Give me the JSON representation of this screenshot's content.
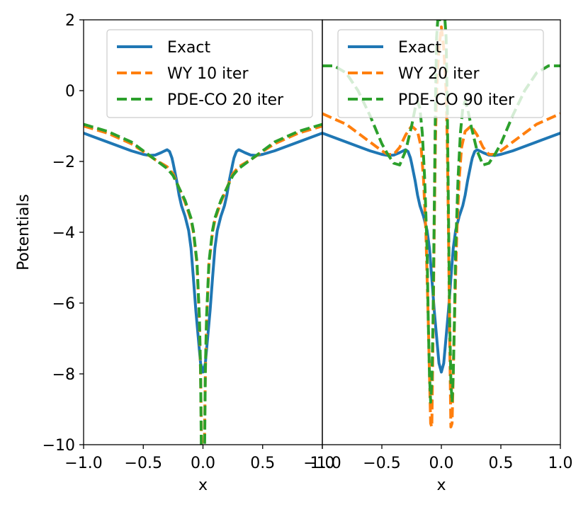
{
  "chart_data": {
    "type": "line",
    "ylabel": "Potentials",
    "ylim": [
      -10,
      2
    ],
    "yticks": [
      2,
      0,
      -2,
      -4,
      -6,
      -8,
      -10
    ],
    "ytick_labels": [
      "2",
      "0",
      "−2",
      "−4",
      "−6",
      "−8",
      "−10"
    ],
    "panels": [
      {
        "xlabel": "x",
        "xlim": [
          -1.0,
          1.0
        ],
        "xticks": [
          -1.0,
          -0.5,
          0.0,
          0.5,
          1.0
        ],
        "xtick_labels": [
          "−1.0",
          "−0.5",
          "0.0",
          "0.5",
          "1.0"
        ],
        "legend_position": "top-center",
        "series": [
          {
            "name": "Exact",
            "color": "#1f77b4",
            "style": "solid",
            "x": [
              -1.0,
              -0.8,
              -0.6,
              -0.5,
              -0.45,
              -0.4,
              -0.35,
              -0.32,
              -0.3,
              -0.28,
              -0.26,
              -0.25,
              -0.22,
              -0.2,
              -0.18,
              -0.15,
              -0.12,
              -0.1,
              -0.08,
              -0.06,
              -0.04,
              -0.02,
              0.0,
              0.02,
              0.04,
              0.06,
              0.08,
              0.1,
              0.12,
              0.15,
              0.18,
              0.2,
              0.22,
              0.25,
              0.26,
              0.28,
              0.3,
              0.32,
              0.35,
              0.4,
              0.45,
              0.5,
              0.6,
              0.8,
              1.0
            ],
            "y": [
              -1.2,
              -1.45,
              -1.7,
              -1.8,
              -1.83,
              -1.82,
              -1.75,
              -1.7,
              -1.67,
              -1.72,
              -1.9,
              -2.05,
              -2.55,
              -2.95,
              -3.25,
              -3.55,
              -3.95,
              -4.45,
              -5.3,
              -6.2,
              -6.95,
              -7.7,
              -7.95,
              -7.7,
              -6.95,
              -6.2,
              -5.3,
              -4.45,
              -3.95,
              -3.55,
              -3.25,
              -2.95,
              -2.55,
              -2.05,
              -1.9,
              -1.72,
              -1.67,
              -1.7,
              -1.75,
              -1.82,
              -1.83,
              -1.8,
              -1.7,
              -1.45,
              -1.2
            ]
          },
          {
            "name": "WY 10 iter",
            "color": "#ff7f0e",
            "style": "dashed",
            "x": [
              -1.0,
              -0.8,
              -0.6,
              -0.5,
              -0.4,
              -0.3,
              -0.25,
              -0.2,
              -0.15,
              -0.1,
              -0.08,
              -0.05,
              -0.03,
              -0.02,
              -0.012,
              0.012,
              0.02,
              0.03,
              0.05,
              0.08,
              0.1,
              0.15,
              0.2,
              0.25,
              0.3,
              0.4,
              0.5,
              0.6,
              0.8,
              1.0
            ],
            "y": [
              -1.0,
              -1.2,
              -1.5,
              -1.72,
              -1.95,
              -2.15,
              -2.35,
              -2.75,
              -3.15,
              -3.65,
              -4.0,
              -4.9,
              -6.5,
              -8.0,
              -10.0,
              -10.0,
              -8.0,
              -6.5,
              -4.9,
              -4.0,
              -3.65,
              -3.15,
              -2.75,
              -2.35,
              -2.15,
              -1.95,
              -1.72,
              -1.5,
              -1.2,
              -1.0
            ]
          },
          {
            "name": "PDE-CO 20 iter",
            "color": "#2ca02c",
            "style": "dashed",
            "x": [
              -1.0,
              -0.8,
              -0.6,
              -0.5,
              -0.4,
              -0.3,
              -0.25,
              -0.2,
              -0.15,
              -0.1,
              -0.08,
              -0.05,
              -0.03,
              -0.02,
              -0.014,
              0.014,
              0.02,
              0.03,
              0.05,
              0.08,
              0.1,
              0.15,
              0.2,
              0.25,
              0.3,
              0.4,
              0.5,
              0.6,
              0.8,
              1.0
            ],
            "y": [
              -0.95,
              -1.15,
              -1.45,
              -1.7,
              -1.95,
              -2.2,
              -2.4,
              -2.75,
              -3.1,
              -3.6,
              -3.95,
              -4.85,
              -6.4,
              -7.9,
              -10.0,
              -10.0,
              -7.9,
              -6.4,
              -4.85,
              -3.95,
              -3.6,
              -3.1,
              -2.75,
              -2.4,
              -2.2,
              -1.95,
              -1.7,
              -1.45,
              -1.15,
              -0.95
            ]
          }
        ]
      },
      {
        "xlabel": "x",
        "xlim": [
          -1.0,
          1.0
        ],
        "xticks": [
          -1.0,
          -0.5,
          0.0,
          0.5,
          1.0
        ],
        "xtick_labels": [
          "−1.0",
          "−0.5",
          "0.0",
          "0.5",
          "1.0"
        ],
        "legend_position": "top-center",
        "series": [
          {
            "name": "Exact",
            "color": "#1f77b4",
            "style": "solid",
            "x": [
              -1.0,
              -0.8,
              -0.6,
              -0.5,
              -0.45,
              -0.4,
              -0.35,
              -0.32,
              -0.3,
              -0.28,
              -0.26,
              -0.25,
              -0.22,
              -0.2,
              -0.18,
              -0.15,
              -0.12,
              -0.1,
              -0.08,
              -0.06,
              -0.04,
              -0.02,
              0.0,
              0.02,
              0.04,
              0.06,
              0.08,
              0.1,
              0.12,
              0.15,
              0.18,
              0.2,
              0.22,
              0.25,
              0.26,
              0.28,
              0.3,
              0.32,
              0.35,
              0.4,
              0.45,
              0.5,
              0.6,
              0.8,
              1.0
            ],
            "y": [
              -1.2,
              -1.45,
              -1.7,
              -1.8,
              -1.83,
              -1.82,
              -1.75,
              -1.7,
              -1.67,
              -1.72,
              -1.9,
              -2.05,
              -2.55,
              -2.95,
              -3.25,
              -3.55,
              -3.95,
              -4.45,
              -5.3,
              -6.2,
              -6.95,
              -7.7,
              -7.95,
              -7.7,
              -6.95,
              -6.2,
              -5.3,
              -4.45,
              -3.95,
              -3.55,
              -3.25,
              -2.95,
              -2.55,
              -2.05,
              -1.9,
              -1.72,
              -1.67,
              -1.7,
              -1.75,
              -1.82,
              -1.83,
              -1.8,
              -1.7,
              -1.45,
              -1.2
            ]
          },
          {
            "name": "WY 20 iter",
            "color": "#ff7f0e",
            "style": "dashed",
            "x": [
              -1.0,
              -0.8,
              -0.6,
              -0.5,
              -0.45,
              -0.4,
              -0.35,
              -0.3,
              -0.25,
              -0.2,
              -0.17,
              -0.15,
              -0.13,
              -0.11,
              -0.1,
              -0.09,
              -0.08,
              -0.07,
              -0.06,
              -0.05,
              -0.04,
              -0.02,
              0.0,
              0.02,
              0.04,
              0.05,
              0.06,
              0.07,
              0.08,
              0.09,
              0.1,
              0.11,
              0.13,
              0.15,
              0.17,
              0.2,
              0.25,
              0.3,
              0.35,
              0.4,
              0.45,
              0.5,
              0.6,
              0.8,
              1.0
            ],
            "y": [
              -0.65,
              -0.95,
              -1.45,
              -1.7,
              -1.8,
              -1.8,
              -1.6,
              -1.25,
              -1.0,
              -1.15,
              -1.6,
              -2.5,
              -4.0,
              -6.5,
              -8.0,
              -9.4,
              -9.5,
              -7.0,
              -4.0,
              -1.5,
              0.0,
              1.2,
              1.8,
              1.2,
              0.0,
              -1.5,
              -4.0,
              -7.0,
              -9.5,
              -9.4,
              -8.0,
              -6.5,
              -4.0,
              -2.5,
              -1.6,
              -1.15,
              -1.0,
              -1.25,
              -1.6,
              -1.8,
              -1.8,
              -1.7,
              -1.45,
              -0.95,
              -0.65
            ]
          },
          {
            "name": "PDE-CO 90 iter",
            "color": "#2ca02c",
            "style": "dashed",
            "x": [
              -1.0,
              -0.9,
              -0.8,
              -0.7,
              -0.6,
              -0.5,
              -0.45,
              -0.4,
              -0.35,
              -0.3,
              -0.25,
              -0.22,
              -0.2,
              -0.18,
              -0.16,
              -0.14,
              -0.12,
              -0.11,
              -0.1,
              -0.09,
              -0.08,
              -0.07,
              -0.06,
              -0.05,
              -0.04,
              -0.03,
              0.0,
              0.03,
              0.04,
              0.05,
              0.06,
              0.07,
              0.08,
              0.09,
              0.1,
              0.11,
              0.12,
              0.14,
              0.16,
              0.18,
              0.2,
              0.22,
              0.25,
              0.3,
              0.35,
              0.4,
              0.45,
              0.5,
              0.6,
              0.7,
              0.8,
              0.9,
              1.0
            ],
            "y": [
              0.7,
              0.7,
              0.5,
              0.0,
              -0.7,
              -1.5,
              -1.8,
              -2.05,
              -2.1,
              -1.7,
              -1.0,
              -0.5,
              -0.3,
              -0.5,
              -1.2,
              -2.5,
              -4.5,
              -6.5,
              -8.0,
              -8.8,
              -8.2,
              -6.5,
              -3.5,
              -0.5,
              1.5,
              2.0,
              2.0,
              2.0,
              1.5,
              -0.5,
              -3.5,
              -6.5,
              -8.2,
              -8.8,
              -8.0,
              -6.5,
              -4.5,
              -2.5,
              -1.2,
              -0.5,
              -0.3,
              -0.5,
              -1.0,
              -1.7,
              -2.1,
              -2.05,
              -1.8,
              -1.5,
              -0.7,
              0.0,
              0.5,
              0.7,
              0.7
            ]
          }
        ]
      }
    ]
  }
}
